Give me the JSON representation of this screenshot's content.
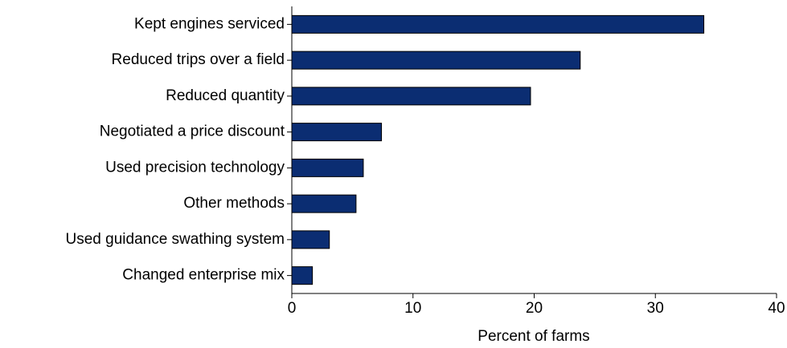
{
  "chart_data": {
    "type": "hbar",
    "categories": [
      "Kept engines serviced",
      "Reduced trips over a field",
      "Reduced quantity",
      "Negotiated a price discount",
      "Used precision technology",
      "Other methods",
      "Used guidance swathing system",
      "Changed enterprise mix"
    ],
    "values": [
      34.0,
      23.8,
      19.7,
      7.4,
      5.9,
      5.3,
      3.1,
      1.7
    ],
    "color": "#0b2d72",
    "xlim": [
      0,
      40
    ],
    "xticks": [
      0,
      10,
      20,
      30,
      40
    ],
    "xlabel": "Percent of farms"
  }
}
